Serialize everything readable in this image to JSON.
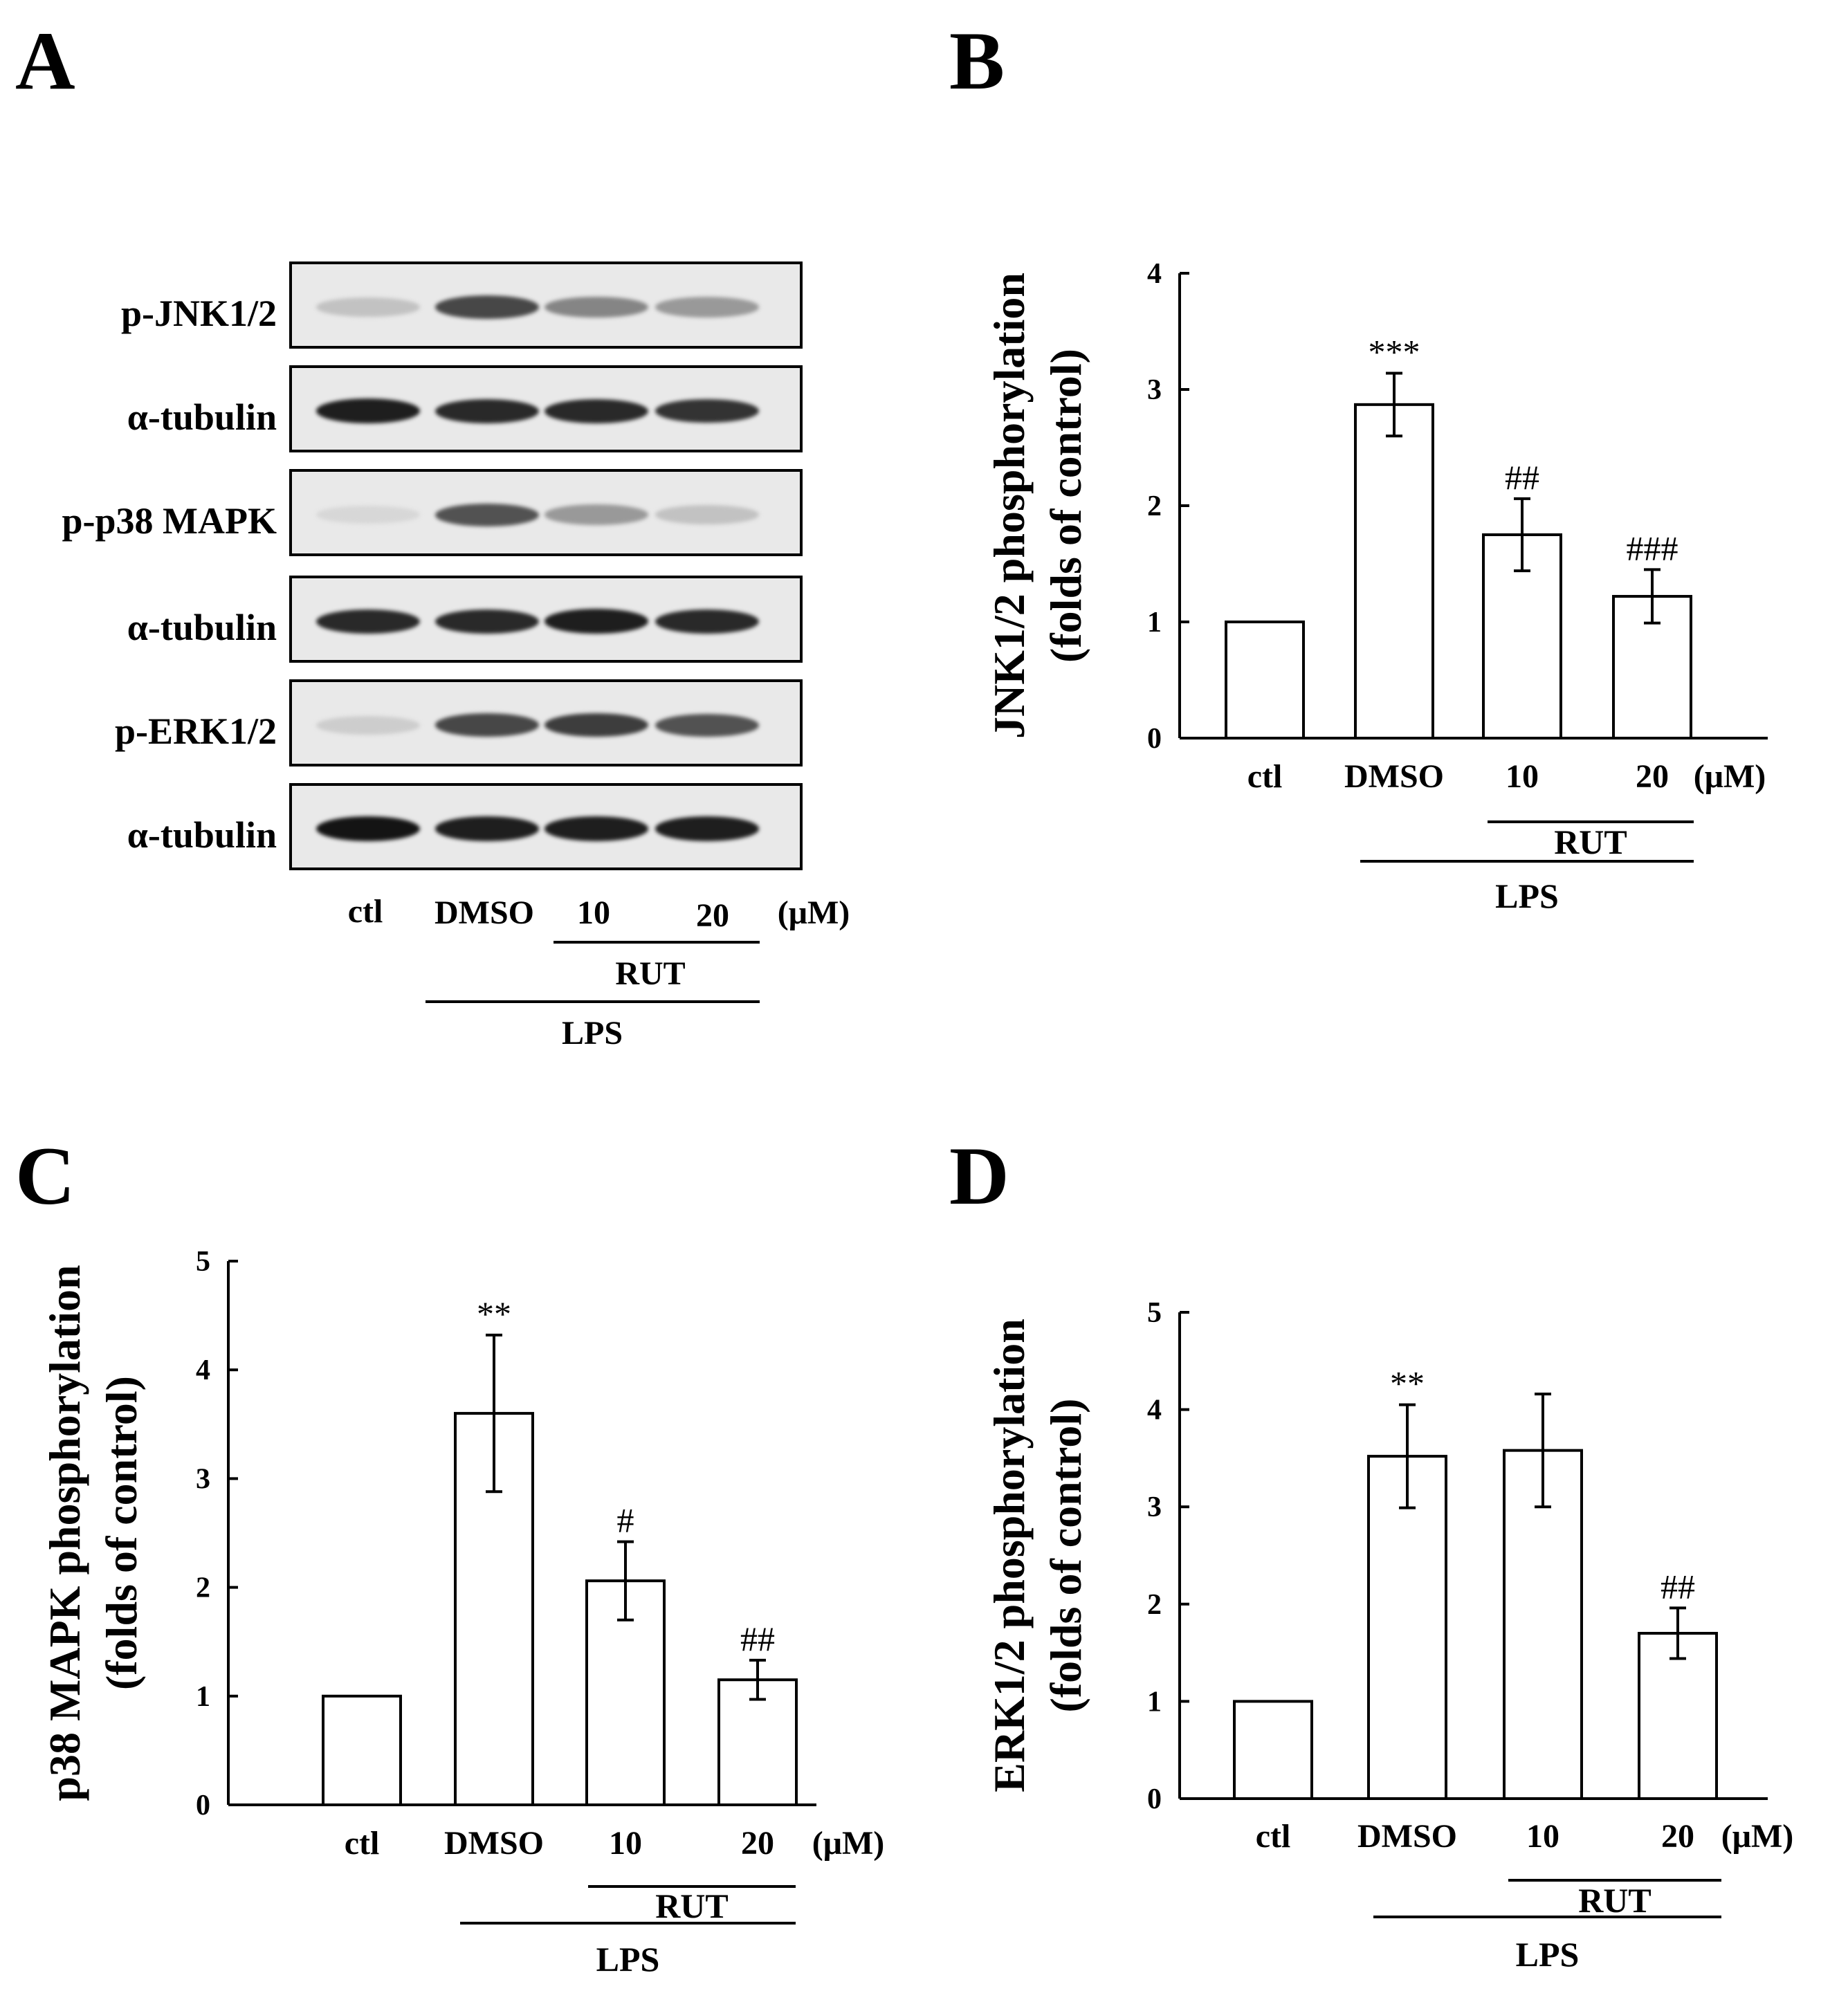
{
  "panels": {
    "A": {
      "letter": "A"
    },
    "B": {
      "letter": "B"
    },
    "C": {
      "letter": "C"
    },
    "D": {
      "letter": "D"
    }
  },
  "blot": {
    "rows": [
      {
        "label": "p-JNK1/2",
        "intensities": [
          0.15,
          0.75,
          0.45,
          0.35
        ]
      },
      {
        "label": "α-tubulin",
        "intensities": [
          0.95,
          0.9,
          0.9,
          0.85
        ]
      },
      {
        "label": "p-p38 MAPK",
        "intensities": [
          0.05,
          0.7,
          0.35,
          0.15
        ]
      },
      {
        "label": "α-tubulin",
        "intensities": [
          0.9,
          0.9,
          0.95,
          0.9
        ]
      },
      {
        "label": "p-ERK1/2",
        "intensities": [
          0.1,
          0.75,
          0.8,
          0.7
        ]
      },
      {
        "label": "α-tubulin",
        "intensities": [
          1.0,
          0.95,
          0.95,
          0.95
        ]
      }
    ],
    "lanes": [
      "ctl",
      "DMSO",
      "10",
      "20"
    ],
    "unit": "(μM)",
    "rut_label": "RUT",
    "lps_label": "LPS"
  },
  "chart_data": [
    {
      "panel": "B",
      "type": "bar",
      "categories": [
        "ctl",
        "DMSO",
        "10",
        "20"
      ],
      "values": [
        1.0,
        2.87,
        1.75,
        1.22
      ],
      "errors": [
        0,
        0.27,
        0.31,
        0.23
      ],
      "annotations": [
        "",
        "***",
        "##",
        "###"
      ],
      "ylabel": [
        "JNK1/2 phosphorylation",
        "(folds of control)"
      ],
      "ylim": [
        0,
        4
      ],
      "yticks": [
        0,
        1,
        2,
        3,
        4
      ],
      "unit": "(μM)",
      "rut_label": "RUT",
      "lps_label": "LPS"
    },
    {
      "panel": "C",
      "type": "bar",
      "categories": [
        "ctl",
        "DMSO",
        "10",
        "20"
      ],
      "values": [
        1.0,
        3.6,
        2.06,
        1.15
      ],
      "errors": [
        0,
        0.72,
        0.36,
        0.18
      ],
      "annotations": [
        "",
        "**",
        "#",
        "##"
      ],
      "ylabel": [
        "p38 MAPK phosphorylation",
        "(folds of control)"
      ],
      "ylim": [
        0,
        5
      ],
      "yticks": [
        0,
        1,
        2,
        3,
        4,
        5
      ],
      "unit": "(μM)",
      "rut_label": "RUT",
      "lps_label": "LPS"
    },
    {
      "panel": "D",
      "type": "bar",
      "categories": [
        "ctl",
        "DMSO",
        "10",
        "20"
      ],
      "values": [
        1.0,
        3.52,
        3.58,
        1.7
      ],
      "errors": [
        0,
        0.53,
        0.58,
        0.26
      ],
      "annotations": [
        "",
        "**",
        "",
        "##"
      ],
      "ylabel": [
        "ERK1/2 phosphorylation",
        "(folds of control)"
      ],
      "ylim": [
        0,
        5
      ],
      "yticks": [
        0,
        1,
        2,
        3,
        4,
        5
      ],
      "unit": "(μM)",
      "rut_label": "RUT",
      "lps_label": "LPS"
    }
  ]
}
